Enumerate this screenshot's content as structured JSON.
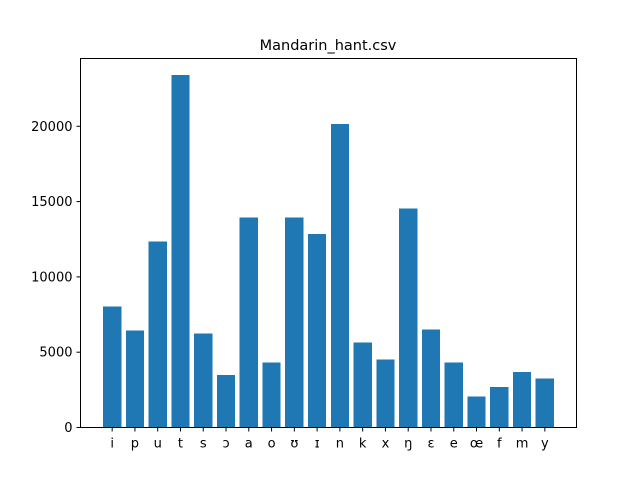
{
  "chart_data": {
    "type": "bar",
    "title": "Mandarin_hant.csv",
    "xlabel": "",
    "ylabel": "",
    "categories": [
      "i",
      "p",
      "u",
      "t",
      "s",
      "ɔ",
      "a",
      "o",
      "ʊ",
      "ɪ",
      "n",
      "k",
      "x",
      "ŋ",
      "ɛ",
      "e",
      "œ",
      "f",
      "m",
      "y"
    ],
    "values": [
      8050,
      6450,
      12350,
      23400,
      6250,
      3500,
      13950,
      4300,
      13950,
      12850,
      20150,
      5650,
      4500,
      14550,
      6500,
      4300,
      2050,
      2700,
      3700,
      3250
    ],
    "ylim": [
      0,
      24500
    ],
    "yticks": [
      0,
      5000,
      10000,
      15000,
      20000
    ],
    "ytick_labels": [
      "0",
      "5000",
      "10000",
      "15000",
      "20000"
    ],
    "bar_color": "#1f77b4",
    "grid": false,
    "legend": "none"
  }
}
